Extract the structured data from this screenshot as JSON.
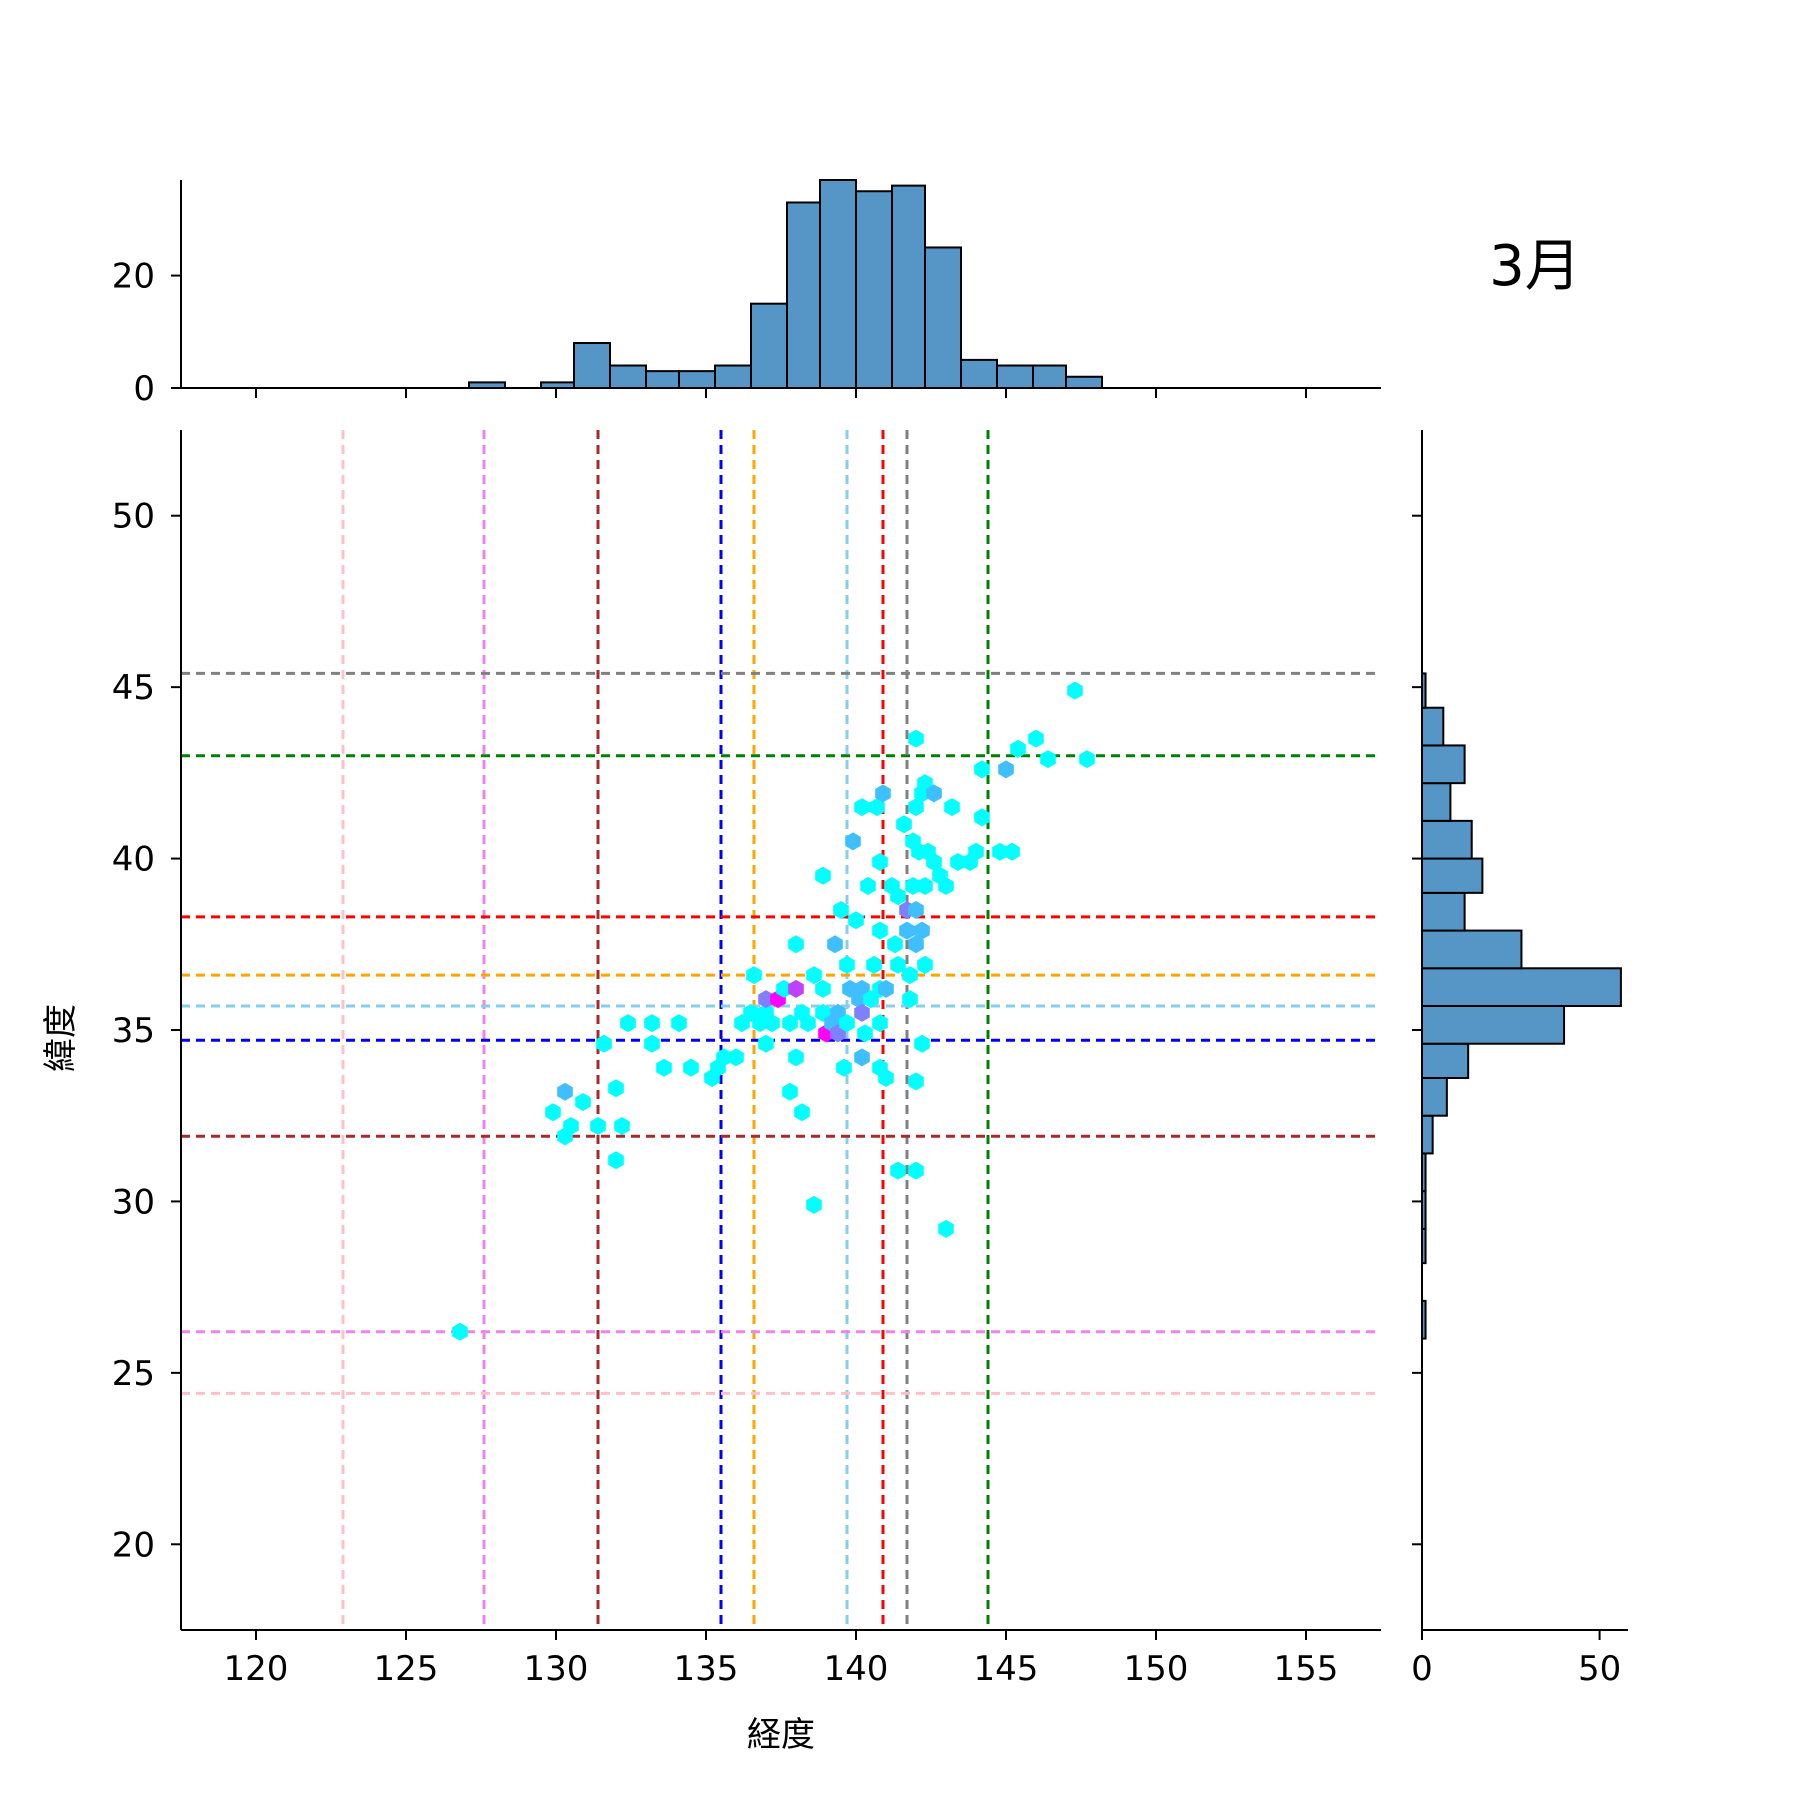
{
  "chart_data": {
    "type": "scatter",
    "subtype": "jointplot-hexbin",
    "title": "3月",
    "xlabel": "経度",
    "ylabel": "緯度",
    "xlim": [
      117.5,
      157.5
    ],
    "ylim": [
      17.5,
      52.5
    ],
    "xticks": [
      120,
      125,
      130,
      135,
      140,
      145,
      150,
      155
    ],
    "yticks": [
      20,
      25,
      30,
      35,
      40,
      45,
      50
    ],
    "hexbin_colormap": "cool",
    "hex_cells": [
      {
        "x": 126.8,
        "y": 26.2,
        "count": 1
      },
      {
        "x": 129.9,
        "y": 32.6,
        "count": 1
      },
      {
        "x": 130.3,
        "y": 33.2,
        "count": 2
      },
      {
        "x": 130.3,
        "y": 31.9,
        "count": 1
      },
      {
        "x": 130.5,
        "y": 32.2,
        "count": 1
      },
      {
        "x": 130.9,
        "y": 32.9,
        "count": 1
      },
      {
        "x": 131.4,
        "y": 32.2,
        "count": 1
      },
      {
        "x": 131.6,
        "y": 34.6,
        "count": 1
      },
      {
        "x": 132.0,
        "y": 33.3,
        "count": 1
      },
      {
        "x": 132.0,
        "y": 31.2,
        "count": 1
      },
      {
        "x": 132.2,
        "y": 32.2,
        "count": 1
      },
      {
        "x": 132.4,
        "y": 35.2,
        "count": 1
      },
      {
        "x": 133.2,
        "y": 35.2,
        "count": 1
      },
      {
        "x": 133.2,
        "y": 34.6,
        "count": 1
      },
      {
        "x": 133.6,
        "y": 33.9,
        "count": 1
      },
      {
        "x": 134.1,
        "y": 35.2,
        "count": 1
      },
      {
        "x": 134.5,
        "y": 33.9,
        "count": 1
      },
      {
        "x": 135.2,
        "y": 33.6,
        "count": 1
      },
      {
        "x": 135.4,
        "y": 33.9,
        "count": 1
      },
      {
        "x": 135.6,
        "y": 34.2,
        "count": 1
      },
      {
        "x": 136.0,
        "y": 34.2,
        "count": 1
      },
      {
        "x": 136.2,
        "y": 35.2,
        "count": 1
      },
      {
        "x": 136.5,
        "y": 35.5,
        "count": 1
      },
      {
        "x": 136.6,
        "y": 36.6,
        "count": 1
      },
      {
        "x": 136.8,
        "y": 35.2,
        "count": 1
      },
      {
        "x": 137.0,
        "y": 35.5,
        "count": 1
      },
      {
        "x": 137.2,
        "y": 35.2,
        "count": 1
      },
      {
        "x": 137.0,
        "y": 34.6,
        "count": 1
      },
      {
        "x": 137.0,
        "y": 35.9,
        "count": 3
      },
      {
        "x": 137.4,
        "y": 35.9,
        "count": 5
      },
      {
        "x": 137.6,
        "y": 36.2,
        "count": 1
      },
      {
        "x": 137.8,
        "y": 35.2,
        "count": 1
      },
      {
        "x": 137.8,
        "y": 33.2,
        "count": 1
      },
      {
        "x": 138.0,
        "y": 36.2,
        "count": 4
      },
      {
        "x": 138.0,
        "y": 34.2,
        "count": 1
      },
      {
        "x": 138.0,
        "y": 37.5,
        "count": 1
      },
      {
        "x": 138.2,
        "y": 35.5,
        "count": 1
      },
      {
        "x": 138.2,
        "y": 32.6,
        "count": 1
      },
      {
        "x": 138.4,
        "y": 35.2,
        "count": 1
      },
      {
        "x": 138.6,
        "y": 36.6,
        "count": 1
      },
      {
        "x": 138.6,
        "y": 29.9,
        "count": 1
      },
      {
        "x": 138.9,
        "y": 39.5,
        "count": 1
      },
      {
        "x": 138.9,
        "y": 36.2,
        "count": 1
      },
      {
        "x": 138.9,
        "y": 35.5,
        "count": 1
      },
      {
        "x": 139.0,
        "y": 34.9,
        "count": 5
      },
      {
        "x": 139.2,
        "y": 35.2,
        "count": 2
      },
      {
        "x": 139.3,
        "y": 37.5,
        "count": 2
      },
      {
        "x": 139.4,
        "y": 35.5,
        "count": 2
      },
      {
        "x": 139.4,
        "y": 34.9,
        "count": 3
      },
      {
        "x": 139.5,
        "y": 38.5,
        "count": 1
      },
      {
        "x": 139.6,
        "y": 33.9,
        "count": 1
      },
      {
        "x": 139.7,
        "y": 35.2,
        "count": 1
      },
      {
        "x": 139.7,
        "y": 36.9,
        "count": 1
      },
      {
        "x": 139.8,
        "y": 36.2,
        "count": 2
      },
      {
        "x": 139.9,
        "y": 40.5,
        "count": 2
      },
      {
        "x": 140.0,
        "y": 38.2,
        "count": 1
      },
      {
        "x": 140.1,
        "y": 35.9,
        "count": 2
      },
      {
        "x": 140.2,
        "y": 36.2,
        "count": 2
      },
      {
        "x": 140.2,
        "y": 35.5,
        "count": 3
      },
      {
        "x": 140.2,
        "y": 34.2,
        "count": 2
      },
      {
        "x": 140.3,
        "y": 34.9,
        "count": 1
      },
      {
        "x": 140.2,
        "y": 41.5,
        "count": 1
      },
      {
        "x": 140.4,
        "y": 39.2,
        "count": 1
      },
      {
        "x": 140.5,
        "y": 35.9,
        "count": 1
      },
      {
        "x": 140.6,
        "y": 36.9,
        "count": 1
      },
      {
        "x": 140.7,
        "y": 41.5,
        "count": 1
      },
      {
        "x": 140.8,
        "y": 39.9,
        "count": 1
      },
      {
        "x": 140.8,
        "y": 37.9,
        "count": 1
      },
      {
        "x": 140.8,
        "y": 36.2,
        "count": 1
      },
      {
        "x": 140.8,
        "y": 35.2,
        "count": 1
      },
      {
        "x": 140.9,
        "y": 41.9,
        "count": 2
      },
      {
        "x": 140.8,
        "y": 33.9,
        "count": 1
      },
      {
        "x": 141.0,
        "y": 36.2,
        "count": 2
      },
      {
        "x": 141.0,
        "y": 33.6,
        "count": 1
      },
      {
        "x": 141.2,
        "y": 39.2,
        "count": 1
      },
      {
        "x": 141.3,
        "y": 37.5,
        "count": 1
      },
      {
        "x": 141.4,
        "y": 38.9,
        "count": 1
      },
      {
        "x": 141.4,
        "y": 36.9,
        "count": 1
      },
      {
        "x": 141.4,
        "y": 30.9,
        "count": 1
      },
      {
        "x": 141.6,
        "y": 41.0,
        "count": 1
      },
      {
        "x": 141.7,
        "y": 38.5,
        "count": 3
      },
      {
        "x": 141.7,
        "y": 37.9,
        "count": 2
      },
      {
        "x": 141.8,
        "y": 36.6,
        "count": 1
      },
      {
        "x": 141.8,
        "y": 35.9,
        "count": 1
      },
      {
        "x": 141.9,
        "y": 40.5,
        "count": 1
      },
      {
        "x": 141.9,
        "y": 39.2,
        "count": 1
      },
      {
        "x": 142.0,
        "y": 43.5,
        "count": 1
      },
      {
        "x": 142.0,
        "y": 41.5,
        "count": 1
      },
      {
        "x": 142.0,
        "y": 38.5,
        "count": 2
      },
      {
        "x": 142.0,
        "y": 37.5,
        "count": 2
      },
      {
        "x": 142.0,
        "y": 33.5,
        "count": 1
      },
      {
        "x": 142.0,
        "y": 30.9,
        "count": 1
      },
      {
        "x": 142.1,
        "y": 40.2,
        "count": 1
      },
      {
        "x": 142.2,
        "y": 41.9,
        "count": 1
      },
      {
        "x": 142.2,
        "y": 37.9,
        "count": 2
      },
      {
        "x": 142.2,
        "y": 34.6,
        "count": 1
      },
      {
        "x": 142.3,
        "y": 42.2,
        "count": 1
      },
      {
        "x": 142.3,
        "y": 39.2,
        "count": 1
      },
      {
        "x": 142.3,
        "y": 36.9,
        "count": 1
      },
      {
        "x": 142.4,
        "y": 40.2,
        "count": 1
      },
      {
        "x": 142.6,
        "y": 41.9,
        "count": 2
      },
      {
        "x": 142.6,
        "y": 39.9,
        "count": 1
      },
      {
        "x": 142.8,
        "y": 39.5,
        "count": 1
      },
      {
        "x": 143.0,
        "y": 39.2,
        "count": 1
      },
      {
        "x": 143.0,
        "y": 29.2,
        "count": 1
      },
      {
        "x": 143.2,
        "y": 41.5,
        "count": 1
      },
      {
        "x": 143.4,
        "y": 39.9,
        "count": 1
      },
      {
        "x": 143.8,
        "y": 39.9,
        "count": 1
      },
      {
        "x": 144.0,
        "y": 40.2,
        "count": 1
      },
      {
        "x": 144.2,
        "y": 42.6,
        "count": 1
      },
      {
        "x": 144.2,
        "y": 41.2,
        "count": 1
      },
      {
        "x": 144.8,
        "y": 40.2,
        "count": 1
      },
      {
        "x": 145.0,
        "y": 42.6,
        "count": 2
      },
      {
        "x": 145.2,
        "y": 40.2,
        "count": 1
      },
      {
        "x": 145.4,
        "y": 43.2,
        "count": 1
      },
      {
        "x": 146.0,
        "y": 43.5,
        "count": 1
      },
      {
        "x": 146.4,
        "y": 42.9,
        "count": 1
      },
      {
        "x": 147.3,
        "y": 44.9,
        "count": 1
      },
      {
        "x": 147.7,
        "y": 42.9,
        "count": 1
      }
    ],
    "vlines": [
      {
        "x": 122.9,
        "color": "#ffc0cb"
      },
      {
        "x": 127.6,
        "color": "#ee82ee"
      },
      {
        "x": 131.4,
        "color": "#a52a2a"
      },
      {
        "x": 135.5,
        "color": "#0000ff"
      },
      {
        "x": 136.6,
        "color": "#ffa500"
      },
      {
        "x": 139.7,
        "color": "#87ceeb"
      },
      {
        "x": 140.9,
        "color": "#ff0000"
      },
      {
        "x": 141.7,
        "color": "#808080"
      },
      {
        "x": 144.4,
        "color": "#008000"
      }
    ],
    "hlines": [
      {
        "y": 45.4,
        "color": "#808080"
      },
      {
        "y": 43.0,
        "color": "#008000"
      },
      {
        "y": 38.3,
        "color": "#ff0000"
      },
      {
        "y": 36.6,
        "color": "#ffa500"
      },
      {
        "y": 35.7,
        "color": "#87ceeb"
      },
      {
        "y": 34.7,
        "color": "#0000ff"
      },
      {
        "y": 31.9,
        "color": "#a52a2a"
      },
      {
        "y": 26.2,
        "color": "#ee82ee"
      },
      {
        "y": 24.4,
        "color": "#ffc0cb"
      }
    ],
    "top_histogram": {
      "color": "#5596c6",
      "yticks": [
        0,
        20
      ],
      "ylim": [
        0,
        37
      ],
      "bins": [
        {
          "x0": 127.1,
          "x1": 128.3,
          "count": 1
        },
        {
          "x0": 128.3,
          "x1": 129.5,
          "count": 0
        },
        {
          "x0": 129.5,
          "x1": 130.6,
          "count": 1
        },
        {
          "x0": 130.6,
          "x1": 131.8,
          "count": 8
        },
        {
          "x0": 131.8,
          "x1": 133.0,
          "count": 4
        },
        {
          "x0": 133.0,
          "x1": 134.1,
          "count": 3
        },
        {
          "x0": 134.1,
          "x1": 135.3,
          "count": 3
        },
        {
          "x0": 135.3,
          "x1": 136.5,
          "count": 4
        },
        {
          "x0": 136.5,
          "x1": 137.7,
          "count": 15
        },
        {
          "x0": 137.7,
          "x1": 138.8,
          "count": 33
        },
        {
          "x0": 138.8,
          "x1": 140.0,
          "count": 37
        },
        {
          "x0": 140.0,
          "x1": 141.2,
          "count": 35
        },
        {
          "x0": 141.2,
          "x1": 142.3,
          "count": 36
        },
        {
          "x0": 142.3,
          "x1": 143.5,
          "count": 25
        },
        {
          "x0": 143.5,
          "x1": 144.7,
          "count": 5
        },
        {
          "x0": 144.7,
          "x1": 145.9,
          "count": 4
        },
        {
          "x0": 145.9,
          "x1": 147.0,
          "count": 4
        },
        {
          "x0": 147.0,
          "x1": 148.2,
          "count": 2
        }
      ]
    },
    "right_histogram": {
      "color": "#5596c6",
      "xticks": [
        0,
        50
      ],
      "xlim": [
        0,
        58
      ],
      "bins": [
        {
          "y0": 26.0,
          "y1": 27.1,
          "count": 1
        },
        {
          "y0": 27.1,
          "y1": 28.2,
          "count": 0
        },
        {
          "y0": 28.2,
          "y1": 29.2,
          "count": 1
        },
        {
          "y0": 29.2,
          "y1": 30.3,
          "count": 1
        },
        {
          "y0": 30.3,
          "y1": 31.4,
          "count": 1
        },
        {
          "y0": 31.4,
          "y1": 32.5,
          "count": 3
        },
        {
          "y0": 32.5,
          "y1": 33.6,
          "count": 7
        },
        {
          "y0": 33.6,
          "y1": 34.6,
          "count": 13
        },
        {
          "y0": 34.6,
          "y1": 35.7,
          "count": 40
        },
        {
          "y0": 35.7,
          "y1": 36.8,
          "count": 56
        },
        {
          "y0": 36.8,
          "y1": 37.9,
          "count": 28
        },
        {
          "y0": 37.9,
          "y1": 39.0,
          "count": 12
        },
        {
          "y0": 39.0,
          "y1": 40.0,
          "count": 17
        },
        {
          "y0": 40.0,
          "y1": 41.1,
          "count": 14
        },
        {
          "y0": 41.1,
          "y1": 42.2,
          "count": 8
        },
        {
          "y0": 42.2,
          "y1": 43.3,
          "count": 12
        },
        {
          "y0": 43.3,
          "y1": 44.4,
          "count": 6
        },
        {
          "y0": 44.4,
          "y1": 45.4,
          "count": 1
        }
      ]
    }
  }
}
